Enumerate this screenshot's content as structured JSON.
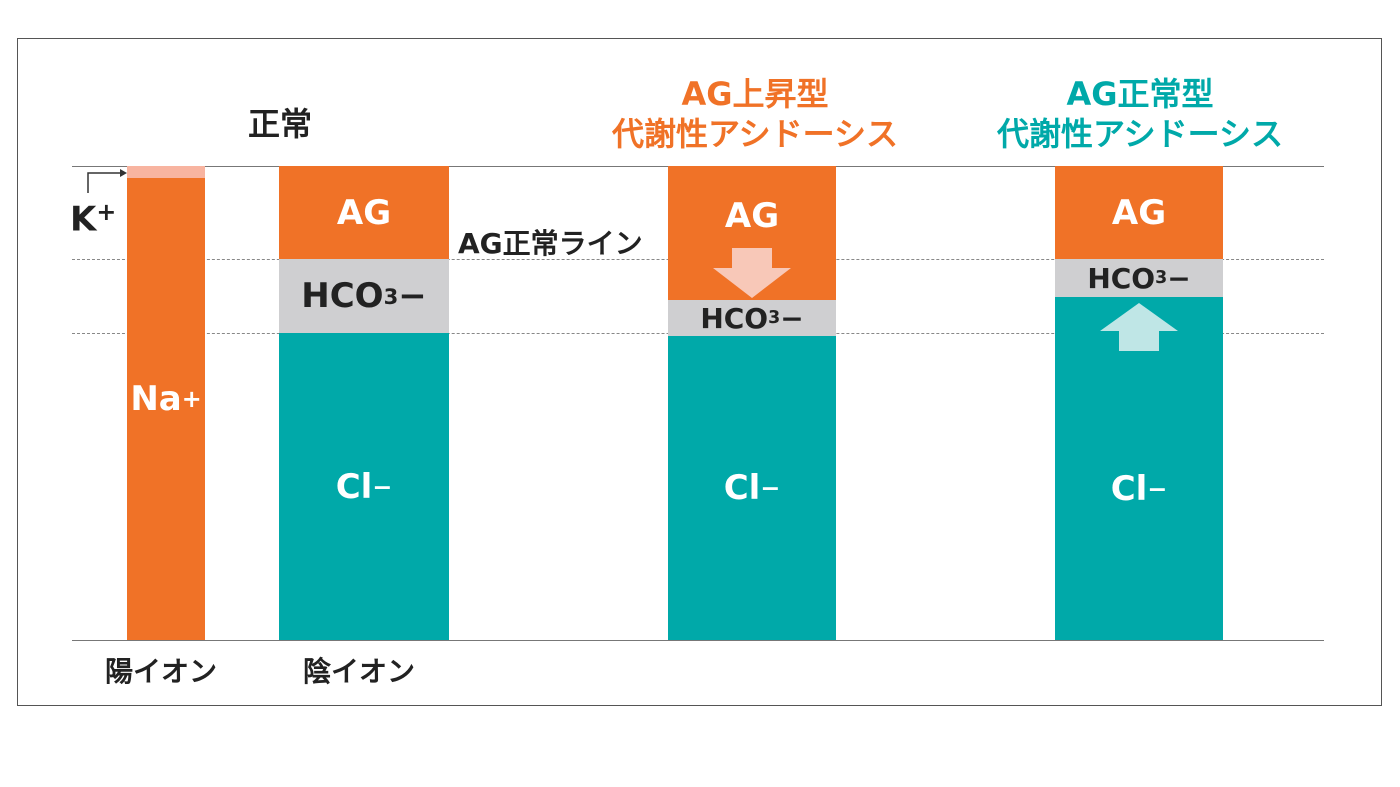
{
  "titles": {
    "normal": "正常",
    "ag_high": [
      "AG上昇型",
      "代謝性アシドーシス"
    ],
    "ag_normal": [
      "AG正常型",
      "代謝性アシドーシス"
    ]
  },
  "cation": {
    "k_label": "K",
    "k_sup": "+",
    "na_label": "Na",
    "na_sup": "+",
    "axis_label": "陽イオン"
  },
  "anion": {
    "ag_label": "AG",
    "hco3_main": "HCO",
    "hco3_sub": "3",
    "hco3_sup": "−",
    "cl_label": "Cl",
    "cl_sup": "−",
    "axis_label": "陰イオン"
  },
  "ag_normal_line_label": "AG正常ライン",
  "colors": {
    "orange": "#f07227",
    "teal": "#00a9a9",
    "gray": "#cfcfd1",
    "pink_arrow": "#f8c8b8",
    "teal_arrow": "#bfe6e6"
  },
  "icons": {
    "down": "arrow-down-icon",
    "up": "arrow-up-icon",
    "k_bracket": "bracket-arrow-icon"
  }
}
